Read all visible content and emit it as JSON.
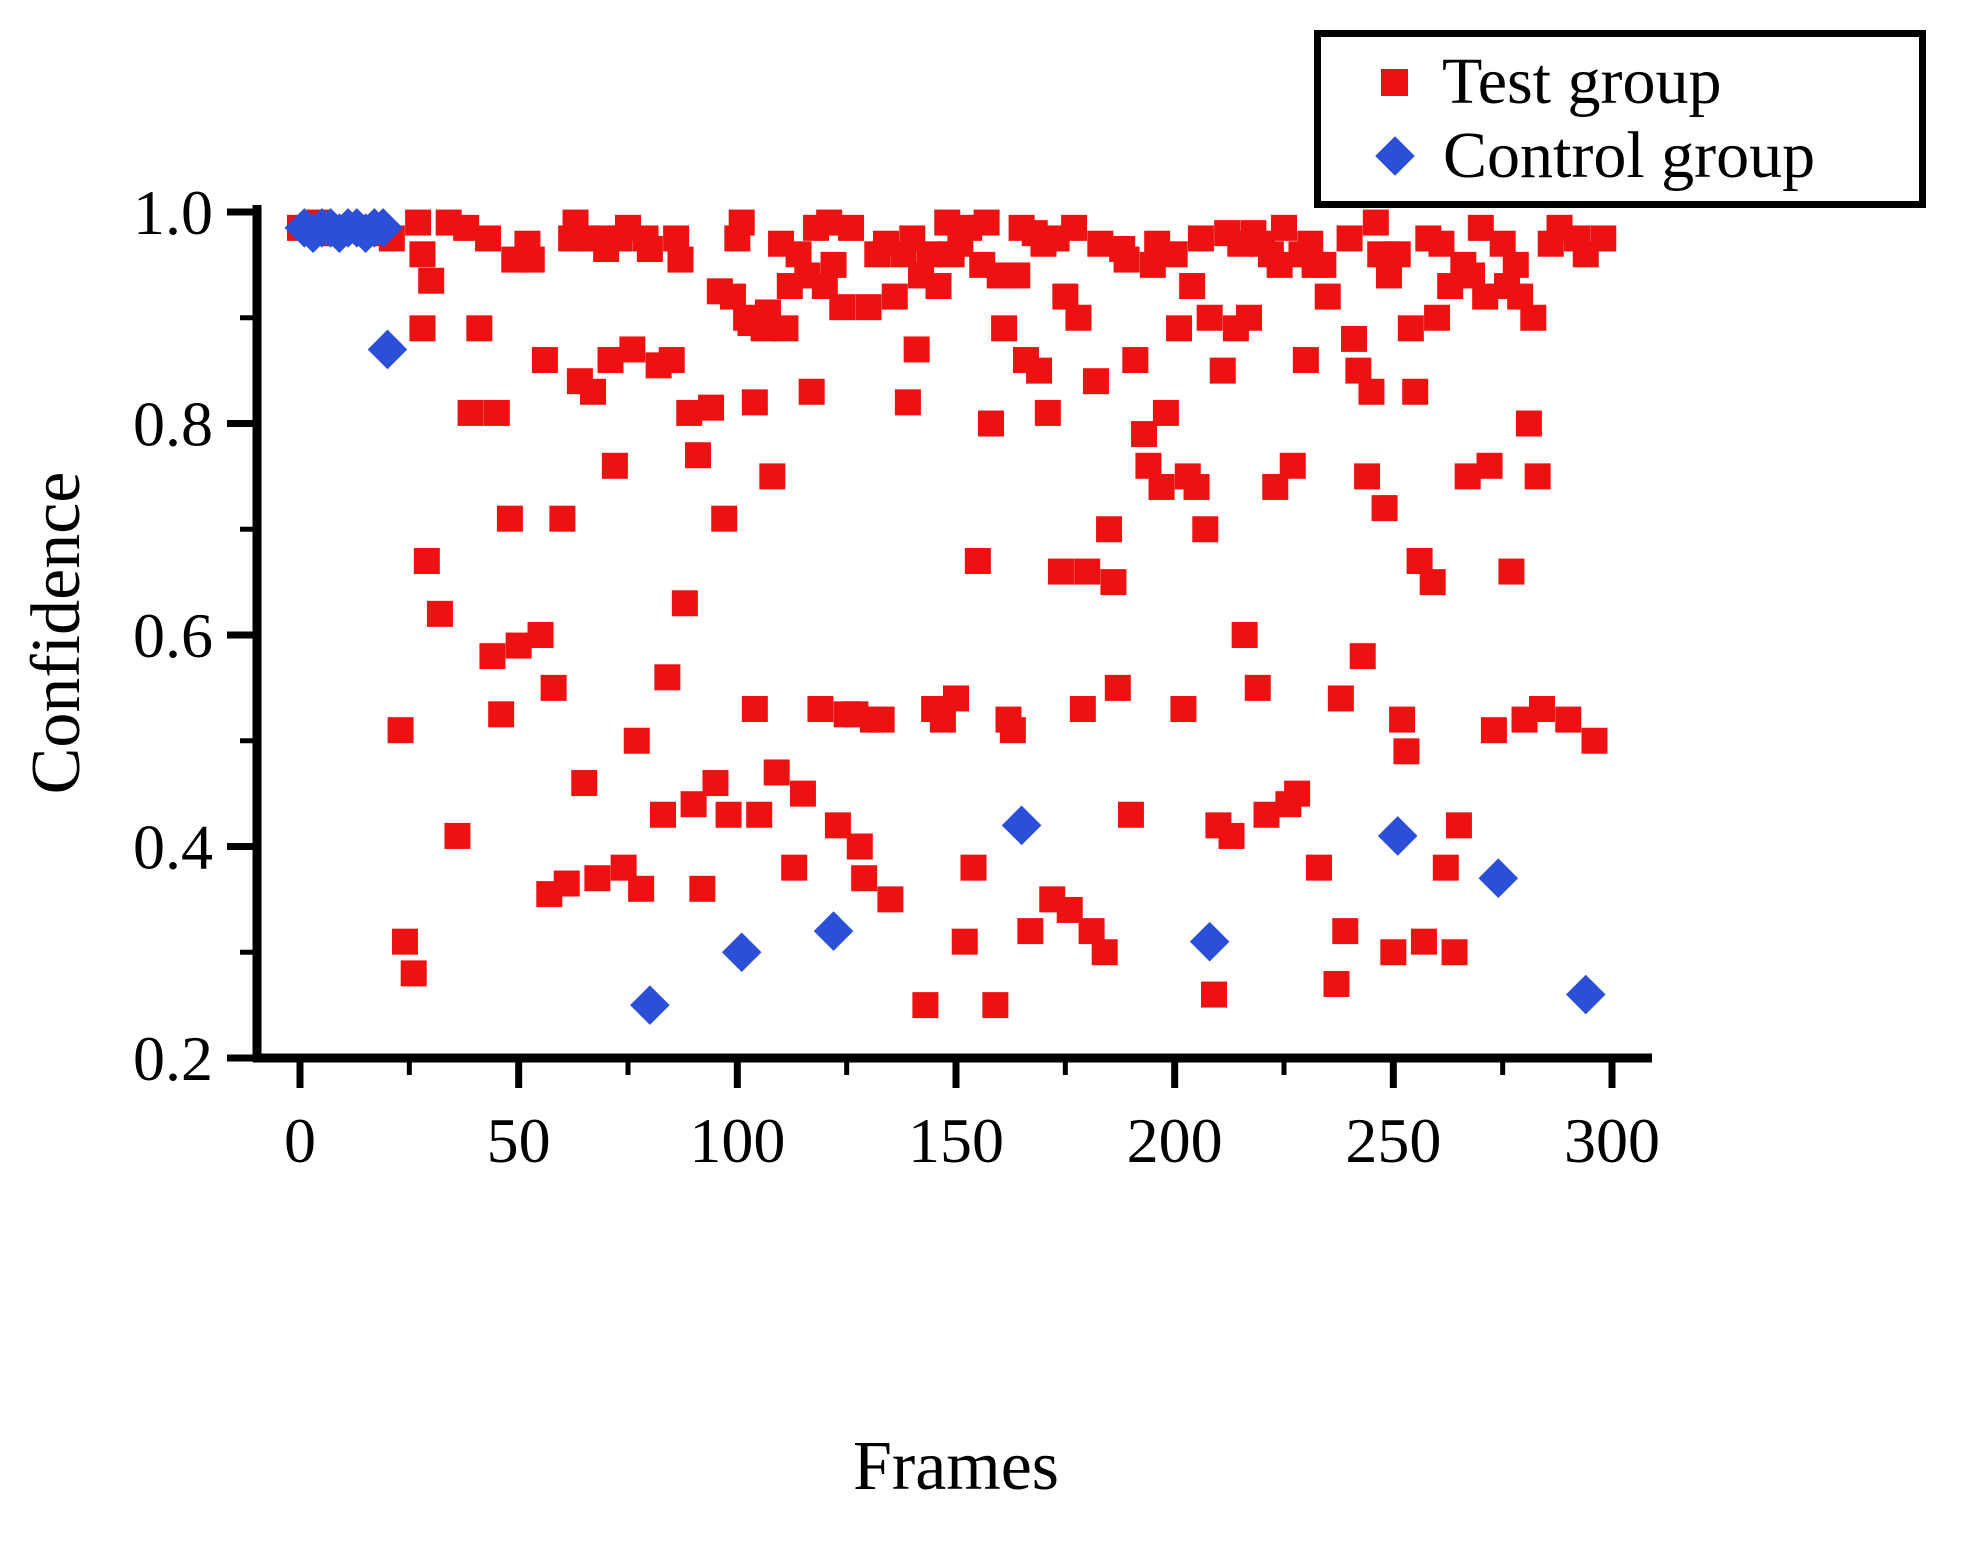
{
  "legend": {
    "items": [
      {
        "label": "Test group",
        "marker": "square",
        "color": "#ee1111"
      },
      {
        "label": "Control group",
        "marker": "diamond",
        "color": "#2b4fd7"
      }
    ]
  },
  "chart_data": {
    "type": "scatter",
    "title": "",
    "xlabel": "Frames",
    "ylabel": "Confidence",
    "grid": false,
    "legend_position": "top-right",
    "x_axis": {
      "min": 0,
      "max": 300,
      "major_ticks": [
        0,
        50,
        100,
        150,
        200,
        250,
        300
      ],
      "tick_labels": [
        "0",
        "50",
        "100",
        "150",
        "200",
        "250",
        "300"
      ],
      "minor_ticks": [
        25,
        75,
        125,
        175,
        225,
        275
      ]
    },
    "y_axis": {
      "min": 0.2,
      "max": 1.0,
      "major_ticks": [
        0.2,
        0.4,
        0.6,
        0.8,
        1.0
      ],
      "tick_labels": [
        "0.2",
        "0.4",
        "0.6",
        "0.8",
        "1.0"
      ],
      "minor_ticks": [
        0.3,
        0.5,
        0.7,
        0.9
      ]
    },
    "series": [
      {
        "name": "Test group",
        "marker": "square",
        "color": "#ee1111",
        "points": [
          [
            0,
            0.985
          ],
          [
            4,
            0.99
          ],
          [
            8,
            0.98
          ],
          [
            14,
            0.985
          ],
          [
            18,
            0.98
          ],
          [
            21,
            0.975
          ],
          [
            23,
            0.51
          ],
          [
            24,
            0.31
          ],
          [
            26,
            0.28
          ],
          [
            27,
            0.99
          ],
          [
            28,
            0.96
          ],
          [
            28,
            0.89
          ],
          [
            29,
            0.67
          ],
          [
            30,
            0.935
          ],
          [
            32,
            0.62
          ],
          [
            34,
            0.99
          ],
          [
            36,
            0.41
          ],
          [
            38,
            0.985
          ],
          [
            39,
            0.81
          ],
          [
            41,
            0.89
          ],
          [
            43,
            0.975
          ],
          [
            44,
            0.58
          ],
          [
            45,
            0.81
          ],
          [
            46,
            0.525
          ],
          [
            48,
            0.71
          ],
          [
            49,
            0.955
          ],
          [
            50,
            0.59
          ],
          [
            52,
            0.97
          ],
          [
            53,
            0.955
          ],
          [
            55,
            0.6
          ],
          [
            56,
            0.86
          ],
          [
            57,
            0.355
          ],
          [
            58,
            0.55
          ],
          [
            60,
            0.71
          ],
          [
            61,
            0.365
          ],
          [
            62,
            0.975
          ],
          [
            63,
            0.99
          ],
          [
            64,
            0.84
          ],
          [
            65,
            0.46
          ],
          [
            66,
            0.975
          ],
          [
            67,
            0.83
          ],
          [
            68,
            0.37
          ],
          [
            69,
            0.975
          ],
          [
            70,
            0.965
          ],
          [
            71,
            0.86
          ],
          [
            72,
            0.76
          ],
          [
            73,
            0.975
          ],
          [
            74,
            0.38
          ],
          [
            75,
            0.985
          ],
          [
            76,
            0.87
          ],
          [
            77,
            0.5
          ],
          [
            78,
            0.36
          ],
          [
            79,
            0.975
          ],
          [
            80,
            0.965
          ],
          [
            82,
            0.855
          ],
          [
            83,
            0.43
          ],
          [
            84,
            0.56
          ],
          [
            85,
            0.86
          ],
          [
            86,
            0.975
          ],
          [
            87,
            0.955
          ],
          [
            88,
            0.63
          ],
          [
            89,
            0.81
          ],
          [
            90,
            0.44
          ],
          [
            91,
            0.77
          ],
          [
            92,
            0.36
          ],
          [
            94,
            0.815
          ],
          [
            95,
            0.46
          ],
          [
            96,
            0.925
          ],
          [
            97,
            0.71
          ],
          [
            98,
            0.43
          ],
          [
            99,
            0.92
          ],
          [
            100,
            0.975
          ],
          [
            101,
            0.99
          ],
          [
            102,
            0.9
          ],
          [
            103,
            0.895
          ],
          [
            104,
            0.82
          ],
          [
            104,
            0.53
          ],
          [
            105,
            0.43
          ],
          [
            106,
            0.89
          ],
          [
            107,
            0.905
          ],
          [
            108,
            0.75
          ],
          [
            109,
            0.47
          ],
          [
            110,
            0.97
          ],
          [
            111,
            0.89
          ],
          [
            112,
            0.93
          ],
          [
            113,
            0.38
          ],
          [
            114,
            0.96
          ],
          [
            115,
            0.45
          ],
          [
            116,
            0.94
          ],
          [
            117,
            0.83
          ],
          [
            118,
            0.985
          ],
          [
            119,
            0.53
          ],
          [
            120,
            0.93
          ],
          [
            121,
            0.99
          ],
          [
            122,
            0.95
          ],
          [
            123,
            0.42
          ],
          [
            124,
            0.91
          ],
          [
            125,
            0.525
          ],
          [
            126,
            0.985
          ],
          [
            127,
            0.525
          ],
          [
            128,
            0.4
          ],
          [
            129,
            0.37
          ],
          [
            130,
            0.91
          ],
          [
            131,
            0.52
          ],
          [
            132,
            0.96
          ],
          [
            133,
            0.52
          ],
          [
            134,
            0.97
          ],
          [
            135,
            0.35
          ],
          [
            136,
            0.92
          ],
          [
            138,
            0.96
          ],
          [
            139,
            0.82
          ],
          [
            140,
            0.975
          ],
          [
            141,
            0.87
          ],
          [
            142,
            0.94
          ],
          [
            143,
            0.25
          ],
          [
            144,
            0.96
          ],
          [
            145,
            0.53
          ],
          [
            146,
            0.93
          ],
          [
            147,
            0.52
          ],
          [
            148,
            0.99
          ],
          [
            149,
            0.96
          ],
          [
            150,
            0.54
          ],
          [
            151,
            0.97
          ],
          [
            152,
            0.31
          ],
          [
            153,
            0.985
          ],
          [
            154,
            0.38
          ],
          [
            155,
            0.67
          ],
          [
            156,
            0.95
          ],
          [
            157,
            0.99
          ],
          [
            158,
            0.8
          ],
          [
            159,
            0.25
          ],
          [
            160,
            0.94
          ],
          [
            161,
            0.89
          ],
          [
            162,
            0.52
          ],
          [
            163,
            0.51
          ],
          [
            164,
            0.94
          ],
          [
            165,
            0.985
          ],
          [
            166,
            0.86
          ],
          [
            167,
            0.32
          ],
          [
            168,
            0.98
          ],
          [
            169,
            0.85
          ],
          [
            170,
            0.97
          ],
          [
            171,
            0.81
          ],
          [
            172,
            0.35
          ],
          [
            173,
            0.975
          ],
          [
            174,
            0.66
          ],
          [
            175,
            0.92
          ],
          [
            176,
            0.34
          ],
          [
            177,
            0.985
          ],
          [
            178,
            0.9
          ],
          [
            179,
            0.53
          ],
          [
            180,
            0.66
          ],
          [
            181,
            0.32
          ],
          [
            182,
            0.84
          ],
          [
            183,
            0.97
          ],
          [
            184,
            0.3
          ],
          [
            185,
            0.7
          ],
          [
            186,
            0.65
          ],
          [
            187,
            0.55
          ],
          [
            188,
            0.965
          ],
          [
            189,
            0.955
          ],
          [
            190,
            0.43
          ],
          [
            191,
            0.86
          ],
          [
            193,
            0.79
          ],
          [
            194,
            0.76
          ],
          [
            195,
            0.95
          ],
          [
            196,
            0.97
          ],
          [
            197,
            0.74
          ],
          [
            198,
            0.81
          ],
          [
            200,
            0.96
          ],
          [
            201,
            0.89
          ],
          [
            202,
            0.53
          ],
          [
            203,
            0.75
          ],
          [
            204,
            0.93
          ],
          [
            205,
            0.74
          ],
          [
            206,
            0.975
          ],
          [
            207,
            0.7
          ],
          [
            208,
            0.9
          ],
          [
            209,
            0.26
          ],
          [
            210,
            0.42
          ],
          [
            211,
            0.85
          ],
          [
            212,
            0.98
          ],
          [
            213,
            0.41
          ],
          [
            214,
            0.89
          ],
          [
            215,
            0.97
          ],
          [
            216,
            0.6
          ],
          [
            217,
            0.9
          ],
          [
            218,
            0.98
          ],
          [
            219,
            0.55
          ],
          [
            220,
            0.97
          ],
          [
            221,
            0.43
          ],
          [
            222,
            0.96
          ],
          [
            223,
            0.74
          ],
          [
            224,
            0.95
          ],
          [
            225,
            0.985
          ],
          [
            226,
            0.44
          ],
          [
            227,
            0.76
          ],
          [
            228,
            0.45
          ],
          [
            229,
            0.96
          ],
          [
            230,
            0.86
          ],
          [
            231,
            0.97
          ],
          [
            232,
            0.95
          ],
          [
            233,
            0.38
          ],
          [
            234,
            0.95
          ],
          [
            235,
            0.92
          ],
          [
            237,
            0.27
          ],
          [
            238,
            0.54
          ],
          [
            239,
            0.32
          ],
          [
            240,
            0.975
          ],
          [
            241,
            0.88
          ],
          [
            242,
            0.85
          ],
          [
            243,
            0.58
          ],
          [
            244,
            0.75
          ],
          [
            245,
            0.83
          ],
          [
            246,
            0.99
          ],
          [
            247,
            0.96
          ],
          [
            248,
            0.72
          ],
          [
            249,
            0.94
          ],
          [
            250,
            0.3
          ],
          [
            251,
            0.96
          ],
          [
            252,
            0.52
          ],
          [
            253,
            0.49
          ],
          [
            254,
            0.89
          ],
          [
            255,
            0.83
          ],
          [
            256,
            0.67
          ],
          [
            257,
            0.31
          ],
          [
            258,
            0.975
          ],
          [
            259,
            0.65
          ],
          [
            260,
            0.9
          ],
          [
            261,
            0.97
          ],
          [
            262,
            0.38
          ],
          [
            263,
            0.93
          ],
          [
            264,
            0.3
          ],
          [
            265,
            0.42
          ],
          [
            266,
            0.95
          ],
          [
            267,
            0.75
          ],
          [
            268,
            0.94
          ],
          [
            270,
            0.985
          ],
          [
            271,
            0.92
          ],
          [
            272,
            0.76
          ],
          [
            273,
            0.51
          ],
          [
            275,
            0.97
          ],
          [
            276,
            0.93
          ],
          [
            277,
            0.66
          ],
          [
            278,
            0.95
          ],
          [
            279,
            0.92
          ],
          [
            280,
            0.52
          ],
          [
            281,
            0.8
          ],
          [
            282,
            0.9
          ],
          [
            283,
            0.75
          ],
          [
            284,
            0.53
          ],
          [
            286,
            0.97
          ],
          [
            288,
            0.985
          ],
          [
            290,
            0.52
          ],
          [
            292,
            0.975
          ],
          [
            294,
            0.96
          ],
          [
            296,
            0.5
          ],
          [
            298,
            0.975
          ]
        ]
      },
      {
        "name": "Control group",
        "marker": "diamond",
        "color": "#2b4fd7",
        "points": [
          [
            1,
            0.985
          ],
          [
            3,
            0.98
          ],
          [
            5,
            0.985
          ],
          [
            7,
            0.985
          ],
          [
            9,
            0.98
          ],
          [
            11,
            0.985
          ],
          [
            13,
            0.985
          ],
          [
            15,
            0.98
          ],
          [
            17,
            0.985
          ],
          [
            19,
            0.985
          ],
          [
            20,
            0.87
          ],
          [
            80,
            0.25
          ],
          [
            101,
            0.3
          ],
          [
            122,
            0.32
          ],
          [
            165,
            0.42
          ],
          [
            208,
            0.31
          ],
          [
            251,
            0.41
          ],
          [
            274,
            0.37
          ],
          [
            294,
            0.26
          ]
        ]
      }
    ]
  }
}
